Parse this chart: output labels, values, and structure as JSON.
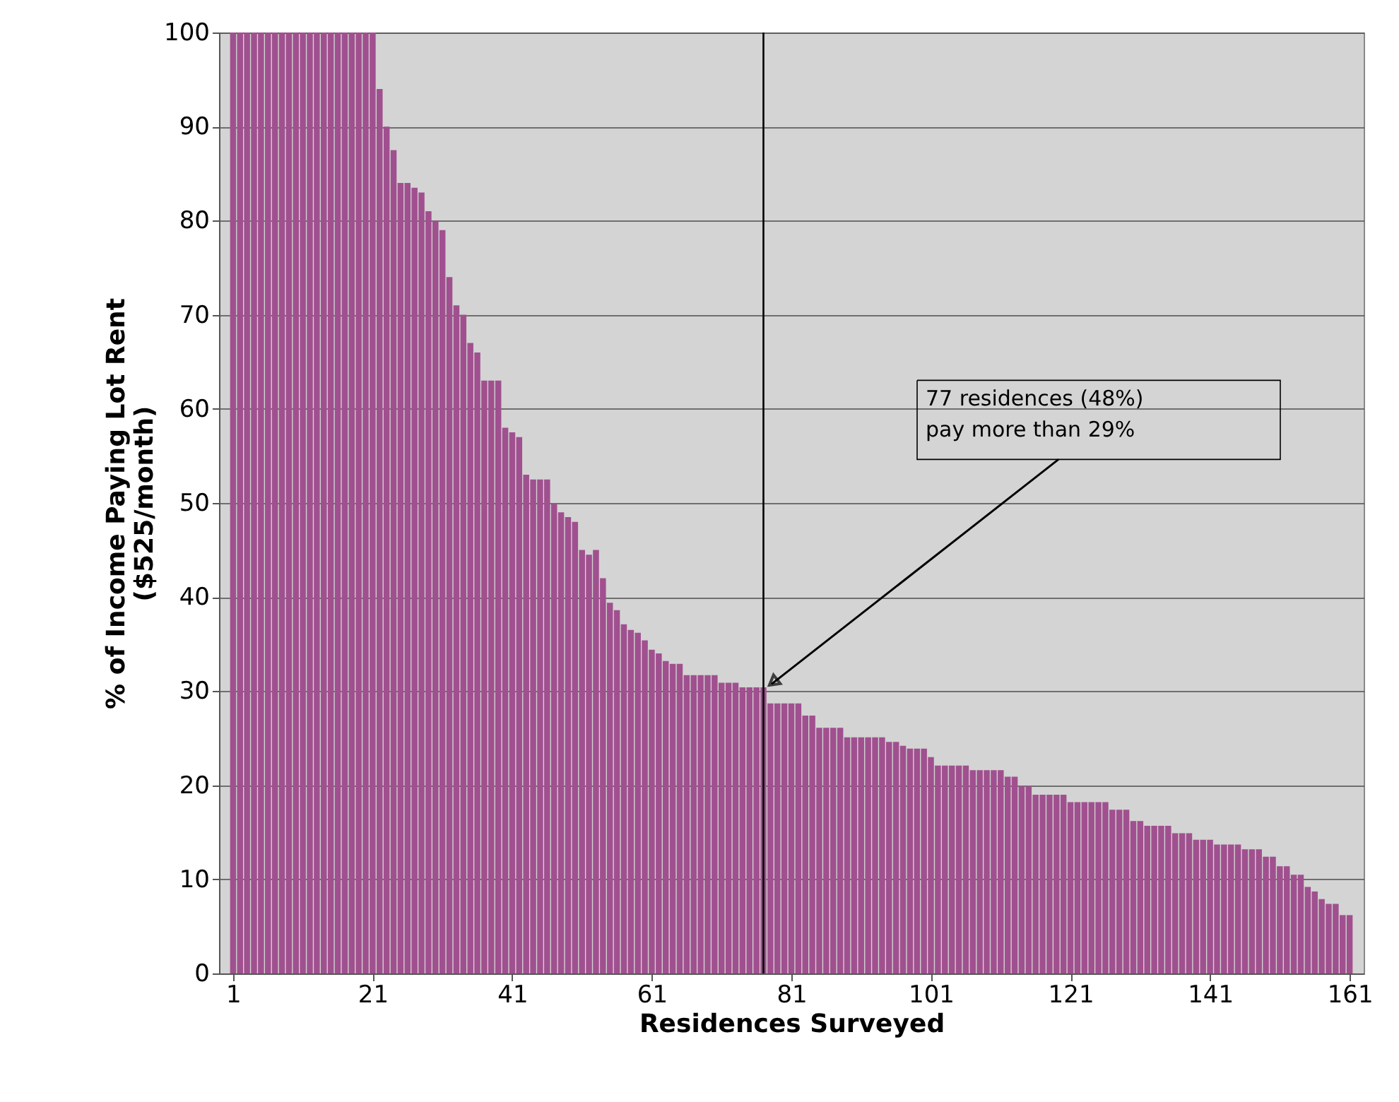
{
  "chart_data": {
    "type": "bar",
    "xlabel": "Residences Surveyed",
    "ylabel": "% of Income Paying Lot Rent\n($525/month)",
    "x": [
      1,
      2,
      3,
      4,
      5,
      6,
      7,
      8,
      9,
      10,
      11,
      12,
      13,
      14,
      15,
      16,
      17,
      18,
      19,
      20,
      21,
      22,
      23,
      24,
      25,
      26,
      27,
      28,
      29,
      30,
      31,
      32,
      33,
      34,
      35,
      36,
      37,
      38,
      39,
      40,
      41,
      42,
      43,
      44,
      45,
      46,
      47,
      48,
      49,
      50,
      51,
      52,
      53,
      54,
      55,
      56,
      57,
      58,
      59,
      60,
      61,
      62,
      63,
      64,
      65,
      66,
      67,
      68,
      69,
      70,
      71,
      72,
      73,
      74,
      75,
      76,
      77,
      78,
      79,
      80,
      81,
      82,
      83,
      84,
      85,
      86,
      87,
      88,
      89,
      90,
      91,
      92,
      93,
      94,
      95,
      96,
      97,
      98,
      99,
      100,
      101,
      102,
      103,
      104,
      105,
      106,
      107,
      108,
      109,
      110,
      111,
      112,
      113,
      114,
      115,
      116,
      117,
      118,
      119,
      120,
      121,
      122,
      123,
      124,
      125,
      126,
      127,
      128,
      129,
      130,
      131,
      132,
      133,
      134,
      135,
      136,
      137,
      138,
      139,
      140,
      141,
      142,
      143,
      144,
      145,
      146,
      147,
      148,
      149,
      150,
      151,
      152,
      153,
      154,
      155,
      156,
      157,
      158,
      159,
      160,
      161
    ],
    "values": [
      100,
      100,
      100,
      100,
      100,
      100,
      100,
      100,
      100,
      100,
      100,
      100,
      100,
      100,
      100,
      100,
      100,
      100,
      100,
      100,
      100,
      94,
      90,
      87.5,
      84,
      84,
      83.5,
      83,
      81,
      80,
      79,
      74,
      71,
      70,
      67,
      66,
      63,
      63,
      63,
      58,
      57.5,
      57,
      53,
      52.5,
      52.5,
      52.5,
      50,
      49,
      48.5,
      48,
      45,
      44.5,
      45,
      42,
      39.4,
      38.6,
      37.1,
      36.5,
      36.2,
      35.4,
      34.4,
      34,
      33.2,
      32.9,
      32.9,
      31.7,
      31.7,
      31.7,
      31.7,
      31.7,
      30.9,
      30.9,
      30.9,
      30.4,
      30.4,
      30.4,
      30.4,
      28.7,
      28.7,
      28.7,
      28.7,
      28.7,
      27.4,
      27.4,
      26.1,
      26.1,
      26.1,
      26.1,
      25.1,
      25.1,
      25.1,
      25.1,
      25.1,
      25.1,
      24.6,
      24.6,
      24.2,
      23.9,
      23.9,
      23.9,
      23,
      22.1,
      22.1,
      22.1,
      22.1,
      22.1,
      21.6,
      21.6,
      21.6,
      21.6,
      21.6,
      20.9,
      20.9,
      19.9,
      19.9,
      19,
      19,
      19,
      19,
      19,
      18.2,
      18.2,
      18.2,
      18.2,
      18.2,
      18.2,
      17.4,
      17.4,
      17.4,
      16.2,
      16.2,
      15.7,
      15.7,
      15.7,
      15.7,
      14.9,
      14.9,
      14.9,
      14.2,
      14.2,
      14.2,
      13.7,
      13.7,
      13.7,
      13.7,
      13.2,
      13.2,
      13.2,
      12.4,
      12.4,
      11.4,
      11.4,
      10.5,
      10.5,
      9.2,
      8.7,
      7.9,
      7.4,
      7.4,
      6.2,
      6.2
    ],
    "color": "#a0508f",
    "xlim": [
      0,
      162
    ],
    "xticks": [
      1,
      21,
      41,
      61,
      81,
      101,
      121,
      141,
      161
    ],
    "ylim": [
      0,
      100
    ],
    "yticks": [
      0,
      10,
      20,
      30,
      40,
      50,
      60,
      70,
      80,
      90,
      100
    ],
    "grid": "y",
    "ref_lines": [
      {
        "axis": "x",
        "value": 77,
        "color": "#000000"
      }
    ],
    "annotations": [
      {
        "text": "77 residences (48%)\npay more than 29%",
        "x": 77,
        "y": 30
      }
    ]
  }
}
